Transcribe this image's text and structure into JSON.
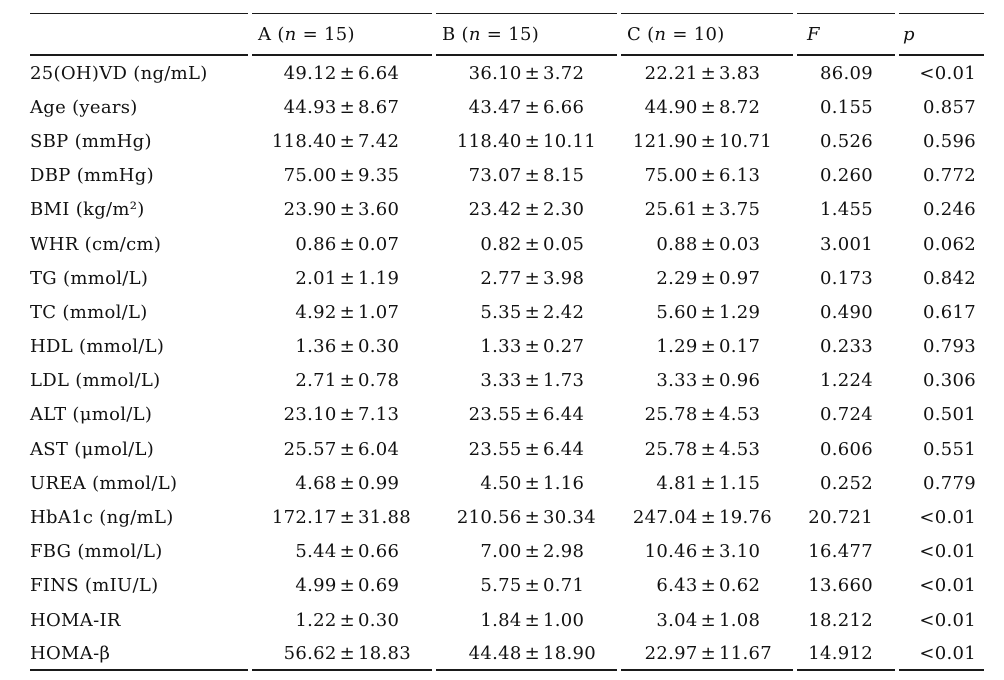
{
  "table": {
    "plus_minus": "±",
    "header": {
      "row_header": "",
      "groups": [
        {
          "pre": "A (",
          "var": "n",
          "post": " = 15)"
        },
        {
          "pre": "B (",
          "var": "n",
          "post": " = 15)"
        },
        {
          "pre": "C (",
          "var": "n",
          "post": " = 10)"
        }
      ],
      "f_label": "F",
      "p_label": "p"
    },
    "rows": [
      {
        "label": "25(OH)VD (ng/mL)",
        "a": [
          "49.12",
          "6.64"
        ],
        "b": [
          "36.10",
          "3.72"
        ],
        "c": [
          "22.21",
          "3.83"
        ],
        "f": "86.09",
        "p": "<0.01"
      },
      {
        "label": "Age (years)",
        "a": [
          "44.93",
          "8.67"
        ],
        "b": [
          "43.47",
          "6.66"
        ],
        "c": [
          "44.90",
          "8.72"
        ],
        "f": "0.155",
        "p": "0.857"
      },
      {
        "label": "SBP (mmHg)",
        "a": [
          "118.40",
          "7.42"
        ],
        "b": [
          "118.40",
          "10.11"
        ],
        "c": [
          "121.90",
          "10.71"
        ],
        "f": "0.526",
        "p": "0.596"
      },
      {
        "label": "DBP (mmHg)",
        "a": [
          "75.00",
          "9.35"
        ],
        "b": [
          "73.07",
          "8.15"
        ],
        "c": [
          "75.00",
          "6.13"
        ],
        "f": "0.260",
        "p": "0.772"
      },
      {
        "label": "BMI (kg/m²)",
        "a": [
          "23.90",
          "3.60"
        ],
        "b": [
          "23.42",
          "2.30"
        ],
        "c": [
          "25.61",
          "3.75"
        ],
        "f": "1.455",
        "p": "0.246"
      },
      {
        "label": "WHR (cm/cm)",
        "a": [
          "0.86",
          "0.07"
        ],
        "b": [
          "0.82",
          "0.05"
        ],
        "c": [
          "0.88",
          "0.03"
        ],
        "f": "3.001",
        "p": "0.062"
      },
      {
        "label": "TG (mmol/L)",
        "a": [
          "2.01",
          "1.19"
        ],
        "b": [
          "2.77",
          "3.98"
        ],
        "c": [
          "2.29",
          "0.97"
        ],
        "f": "0.173",
        "p": "0.842"
      },
      {
        "label": "TC (mmol/L)",
        "a": [
          "4.92",
          "1.07"
        ],
        "b": [
          "5.35",
          "2.42"
        ],
        "c": [
          "5.60",
          "1.29"
        ],
        "f": "0.490",
        "p": "0.617"
      },
      {
        "label": "HDL (mmol/L)",
        "a": [
          "1.36",
          "0.30"
        ],
        "b": [
          "1.33",
          "0.27"
        ],
        "c": [
          "1.29",
          "0.17"
        ],
        "f": "0.233",
        "p": "0.793"
      },
      {
        "label": "LDL (mmol/L)",
        "a": [
          "2.71",
          "0.78"
        ],
        "b": [
          "3.33",
          "1.73"
        ],
        "c": [
          "3.33",
          "0.96"
        ],
        "f": "1.224",
        "p": "0.306"
      },
      {
        "label": "ALT (μmol/L)",
        "a": [
          "23.10",
          "7.13"
        ],
        "b": [
          "23.55",
          "6.44"
        ],
        "c": [
          "25.78",
          "4.53"
        ],
        "f": "0.724",
        "p": "0.501"
      },
      {
        "label": "AST (μmol/L)",
        "a": [
          "25.57",
          "6.04"
        ],
        "b": [
          "23.55",
          "6.44"
        ],
        "c": [
          "25.78",
          "4.53"
        ],
        "f": "0.606",
        "p": "0.551"
      },
      {
        "label": "UREA (mmol/L)",
        "a": [
          "4.68",
          "0.99"
        ],
        "b": [
          "4.50",
          "1.16"
        ],
        "c": [
          "4.81",
          "1.15"
        ],
        "f": "0.252",
        "p": "0.779"
      },
      {
        "label": "HbA1c (ng/mL)",
        "a": [
          "172.17",
          "31.88"
        ],
        "b": [
          "210.56",
          "30.34"
        ],
        "c": [
          "247.04",
          "19.76"
        ],
        "f": "20.721",
        "p": "<0.01"
      },
      {
        "label": "FBG (mmol/L)",
        "a": [
          "5.44",
          "0.66"
        ],
        "b": [
          "7.00",
          "2.98"
        ],
        "c": [
          "10.46",
          "3.10"
        ],
        "f": "16.477",
        "p": "<0.01"
      },
      {
        "label": "FINS (mIU/L)",
        "a": [
          "4.99",
          "0.69"
        ],
        "b": [
          "5.75",
          "0.71"
        ],
        "c": [
          "6.43",
          "0.62"
        ],
        "f": "13.660",
        "p": "<0.01"
      },
      {
        "label": "HOMA-IR",
        "a": [
          "1.22",
          "0.30"
        ],
        "b": [
          "1.84",
          "1.00"
        ],
        "c": [
          "3.04",
          "1.08"
        ],
        "f": "18.212",
        "p": "<0.01"
      },
      {
        "label": "HOMA-β",
        "a": [
          "56.62",
          "18.83"
        ],
        "b": [
          "44.48",
          "18.90"
        ],
        "c": [
          "22.97",
          "11.67"
        ],
        "f": "14.912",
        "p": "<0.01"
      }
    ]
  }
}
